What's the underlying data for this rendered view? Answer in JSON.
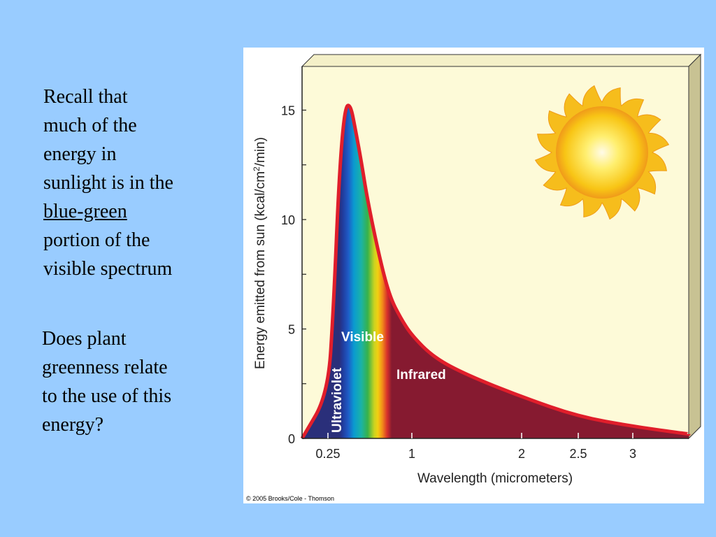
{
  "slide": {
    "para1": {
      "line1": "Recall that",
      "line2": "much of the",
      "line3": "energy in",
      "line4": "sunlight is in the",
      "line5_underlined": "blue-green",
      "line6": "portion of the",
      "line7": "visible spectrum"
    },
    "para2": {
      "line1": "Does plant",
      "line2": "greenness relate",
      "line3": "to the use of this",
      "line4": "energy?"
    }
  },
  "chart_data": {
    "type": "area",
    "title": "",
    "xlabel": "Wavelength (micrometers)",
    "ylabel_prefix": "Energy emitted from sun (kcal/cm",
    "ylabel_sup": "2",
    "ylabel_suffix": "/min)",
    "x_ticks": [
      {
        "value": 0.25,
        "label": "0.25"
      },
      {
        "value": 1,
        "label": "1"
      },
      {
        "value": 2,
        "label": "2"
      },
      {
        "value": 2.5,
        "label": "2.5"
      },
      {
        "value": 3,
        "label": "3"
      }
    ],
    "y_ticks": [
      {
        "value": 0,
        "label": "0"
      },
      {
        "value": 5,
        "label": "5"
      },
      {
        "value": 10,
        "label": "10"
      },
      {
        "value": 15,
        "label": "15"
      }
    ],
    "xlim": [
      0.2,
      3.5
    ],
    "ylim": [
      0,
      17
    ],
    "series": [
      {
        "x": [
          0.2,
          0.25,
          0.3,
          0.35,
          0.4,
          0.45,
          0.5,
          0.55,
          0.6,
          0.7,
          0.8,
          0.9,
          1.0,
          1.2,
          1.5,
          2.0,
          2.5,
          3.0,
          3.5
        ],
        "y": [
          0,
          2,
          6,
          12,
          15.1,
          15.3,
          14,
          12.6,
          11,
          8.5,
          6.5,
          5.5,
          4.7,
          3.7,
          2.9,
          1.9,
          1.0,
          0.55,
          0.2
        ]
      }
    ],
    "regions": [
      {
        "label": "Ultraviolet",
        "from": 0.2,
        "to": 0.4,
        "color": "#2a2f7a"
      },
      {
        "label": "Visible",
        "from": 0.4,
        "to": 0.7,
        "color": "#0a9ad0"
      },
      {
        "label": "Infrared",
        "from": 0.7,
        "to": 3.5,
        "color": "#861a30"
      }
    ],
    "grid": false,
    "colors": {
      "panel": "#fdfad8",
      "curve_outline": "#e01e2b",
      "axis": "#222222"
    }
  },
  "copyright": "© 2005 Brooks/Cole - Thomson"
}
